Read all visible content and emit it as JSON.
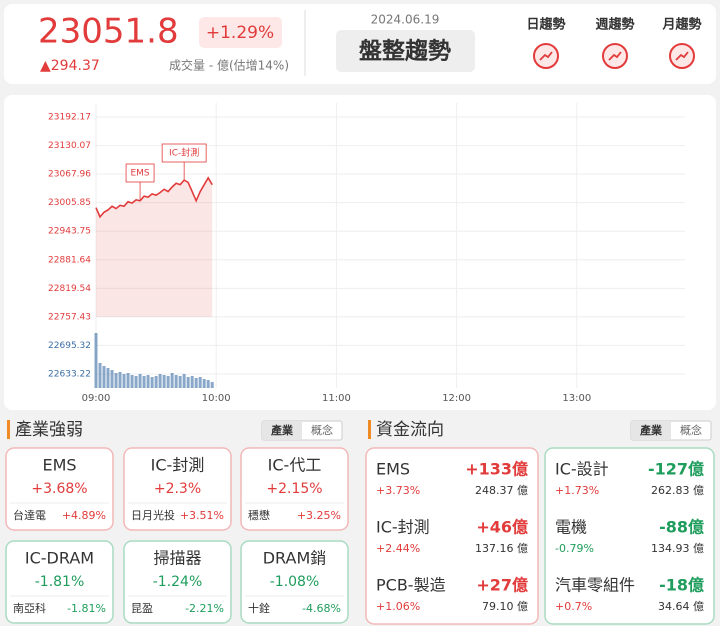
{
  "colors": {
    "up": "#e23b3b",
    "down": "#1f9d5c"
  },
  "header": {
    "index": "23051.8",
    "change_pct": "+1.29%",
    "change": "▲294.37",
    "volume": "成交量 - 億(估增14%)",
    "date": "2024.06.19",
    "trend": "盤整趨勢",
    "trend_buttons": [
      "日趨勢",
      "週趨勢",
      "月趨勢"
    ]
  },
  "chart": {
    "xlim": [
      0,
      294
    ],
    "ylim": [
      22602.7,
      23222.7
    ],
    "xticks": [
      {
        "value": 0,
        "label": "09:00"
      },
      {
        "value": 60,
        "label": "10:00"
      },
      {
        "value": 120,
        "label": "11:00"
      },
      {
        "value": 180,
        "label": "12:00"
      },
      {
        "value": 240,
        "label": "13:00"
      }
    ],
    "price_yticks": [
      23192.17,
      23130.07,
      23067.96,
      23005.85,
      22943.75,
      22881.64,
      22819.54,
      22757.43
    ],
    "volume_yticks": [
      22695.32,
      22633.22
    ],
    "price_color": "#e23b3b",
    "volume_color": "#3a6ea5",
    "x": [
      0,
      2,
      4,
      6,
      8,
      10,
      12,
      14,
      16,
      18,
      20,
      22,
      24,
      26,
      28,
      30,
      32,
      34,
      36,
      38,
      40,
      42,
      44,
      46,
      48,
      50,
      52,
      54,
      56,
      58
    ],
    "price": [
      22995,
      22975,
      22985,
      22990,
      22998,
      22993,
      23000,
      22998,
      23008,
      23005,
      23012,
      23010,
      23020,
      23018,
      23025,
      23022,
      23028,
      23035,
      23030,
      23040,
      23048,
      23045,
      23055,
      23050,
      23030,
      23010,
      23030,
      23045,
      23060,
      23045
    ],
    "volume_lim": [
      0,
      60
    ],
    "volume": [
      55,
      25,
      22,
      20,
      18,
      15,
      16,
      14,
      15,
      13,
      12,
      14,
      12,
      13,
      11,
      12,
      14,
      13,
      12,
      15,
      13,
      12,
      14,
      11,
      12,
      10,
      11,
      9,
      8,
      6
    ],
    "annotations": [
      {
        "text": "EMS",
        "x": 22
      },
      {
        "text": "IC-封測",
        "x": 44
      }
    ]
  },
  "industry": {
    "title": "產業強弱",
    "tabs": [
      "產業",
      "概念"
    ],
    "cards": [
      {
        "name": "EMS",
        "pct": "+3.68%",
        "stock": "台達電",
        "stock_pct": "+4.89%"
      },
      {
        "name": "IC-封測",
        "pct": "+2.3%",
        "stock": "日月光投",
        "stock_pct": "+3.51%"
      },
      {
        "name": "IC-代工",
        "pct": "+2.15%",
        "stock": "穩懋",
        "stock_pct": "+3.25%"
      },
      {
        "name": "IC-DRAM",
        "pct": "-1.81%",
        "stock": "南亞科",
        "stock_pct": "-1.81%"
      },
      {
        "name": "掃描器",
        "pct": "-1.24%",
        "stock": "昆盈",
        "stock_pct": "-2.21%"
      },
      {
        "name": "DRAM銷",
        "pct": "-1.08%",
        "stock": "十銓",
        "stock_pct": "-4.68%"
      }
    ]
  },
  "fund_flow": {
    "title": "資金流向",
    "tabs": [
      "產業",
      "概念"
    ],
    "columns": [
      [
        {
          "name": "EMS",
          "amount": "+133億",
          "pct": "+3.73%",
          "turnover": "248.37 億"
        },
        {
          "name": "IC-封測",
          "amount": "+46億",
          "pct": "+2.44%",
          "turnover": "137.16 億"
        },
        {
          "name": "PCB-製造",
          "amount": "+27億",
          "pct": "+1.06%",
          "turnover": "79.10 億"
        }
      ],
      [
        {
          "name": "IC-設計",
          "amount": "-127億",
          "pct": "+1.73%",
          "turnover": "262.83 億"
        },
        {
          "name": "電機",
          "amount": "-88億",
          "pct": "-0.79%",
          "turnover": "134.93 億"
        },
        {
          "name": "汽車零組件",
          "amount": "-18億",
          "pct": "+0.7%",
          "turnover": "34.64 億"
        }
      ]
    ]
  }
}
